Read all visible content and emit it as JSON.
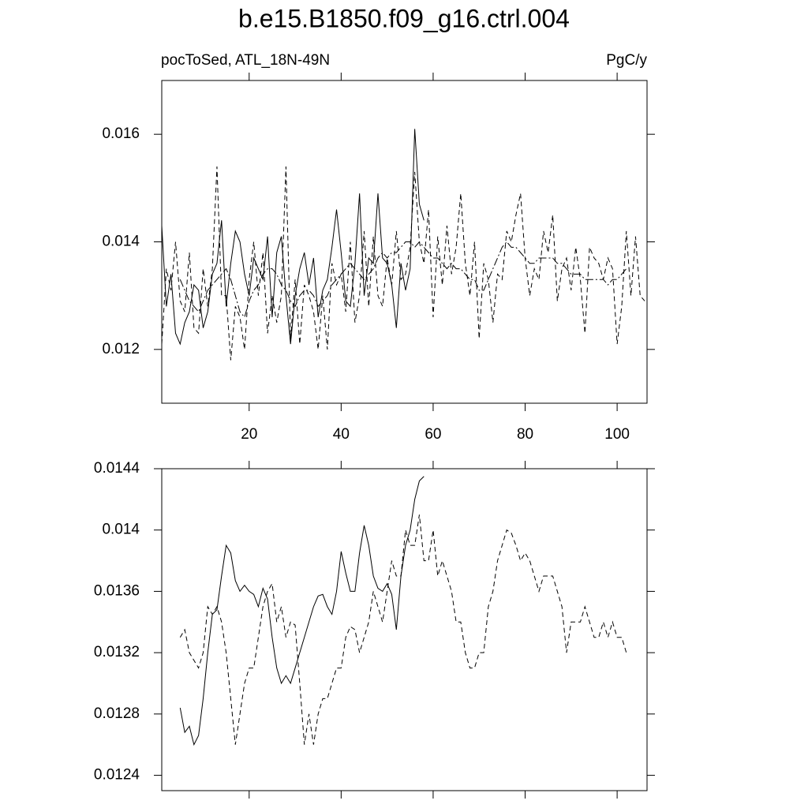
{
  "chart_data": [
    {
      "type": "line",
      "title": "b.e15.B1850.f09_g16.ctrl.004",
      "left_string": "pocToSed, ATL_18N-49N",
      "right_string": "PgC/y",
      "x": [
        1,
        2,
        3,
        4,
        5,
        6,
        7,
        8,
        9,
        10,
        11,
        12,
        13,
        14,
        15,
        16,
        17,
        18,
        19,
        20,
        21,
        22,
        23,
        24,
        25,
        26,
        27,
        28,
        29,
        30,
        31,
        32,
        33,
        34,
        35,
        36,
        37,
        38,
        39,
        40,
        41,
        42,
        43,
        44,
        45,
        46,
        47,
        48,
        49,
        50,
        51,
        52,
        53,
        54,
        55,
        56,
        57,
        58,
        59,
        60,
        61,
        62,
        63,
        64,
        65,
        66,
        67,
        68,
        69,
        70,
        71,
        72,
        73,
        74,
        75,
        76,
        77,
        78,
        79,
        80,
        81,
        82,
        83,
        84,
        85,
        86,
        87,
        88,
        89,
        90,
        91,
        92,
        93,
        94,
        95,
        96,
        97,
        98,
        99,
        100,
        101,
        102,
        103,
        104,
        105,
        106
      ],
      "xlim": [
        1,
        106.5
      ],
      "xticks": [
        20,
        40,
        60,
        80,
        100
      ],
      "xticklabels": true,
      "ylim": [
        0.011,
        0.017
      ],
      "yticks": [
        0.012,
        0.014,
        0.016
      ],
      "series": [
        {
          "color": "#000000",
          "dash": "solid",
          "values": [
            0.0143,
            0.0128,
            0.0134,
            0.0123,
            0.0121,
            0.0125,
            0.0127,
            0.0132,
            0.0131,
            0.0124,
            0.0127,
            0.0134,
            0.0136,
            0.0144,
            0.0128,
            0.0136,
            0.0142,
            0.014,
            0.0134,
            0.013,
            0.0137,
            0.0135,
            0.0133,
            0.0141,
            0.0126,
            0.0138,
            0.0141,
            0.013,
            0.0121,
            0.013,
            0.0135,
            0.0138,
            0.0132,
            0.0137,
            0.0126,
            0.0131,
            0.0133,
            0.0139,
            0.0146,
            0.0138,
            0.0129,
            0.0128,
            0.0136,
            0.0149,
            0.013,
            0.0137,
            0.0136,
            0.0149,
            0.0137,
            0.0136,
            0.0132,
            0.0124,
            0.0136,
            0.0131,
            0.0135,
            0.0161,
            0.0147,
            0.0144,
            null,
            null,
            null,
            null,
            null,
            null,
            null,
            null,
            null,
            null,
            null,
            null,
            null,
            null,
            null,
            null,
            null,
            null,
            null,
            null,
            null,
            null,
            null,
            null,
            null,
            null,
            null,
            null,
            null,
            null,
            null,
            null,
            null,
            null,
            null,
            null,
            null,
            null,
            null,
            null,
            null,
            null,
            null,
            null,
            null,
            null,
            null,
            null
          ]
        },
        {
          "color": "#000000",
          "dash": "dashed",
          "values": [
            0.0121,
            0.0135,
            0.0131,
            0.014,
            0.0129,
            0.0127,
            0.0138,
            0.0124,
            0.0123,
            0.0135,
            0.0128,
            0.0135,
            0.0154,
            0.013,
            0.013,
            0.0118,
            0.0128,
            0.0126,
            0.012,
            0.0133,
            0.014,
            0.013,
            0.0138,
            0.0123,
            0.013,
            0.0125,
            0.013,
            0.0154,
            0.0122,
            0.0133,
            0.0121,
            0.0132,
            0.013,
            0.0127,
            0.012,
            0.013,
            0.012,
            0.0136,
            0.0132,
            0.0134,
            0.0127,
            0.014,
            0.0125,
            0.013,
            0.0142,
            0.0128,
            0.0141,
            0.013,
            0.0128,
            0.0137,
            0.0132,
            0.0142,
            0.0133,
            0.0134,
            0.0139,
            0.0153,
            0.014,
            0.0136,
            0.0146,
            0.0126,
            0.0141,
            0.0132,
            0.0143,
            0.0134,
            0.0139,
            0.0149,
            0.0136,
            0.013,
            0.014,
            0.0122,
            0.0136,
            0.0133,
            0.0125,
            0.0134,
            0.0133,
            0.0142,
            0.014,
            0.0145,
            0.0149,
            0.0137,
            0.013,
            0.0135,
            0.0133,
            0.0142,
            0.0138,
            0.0145,
            0.0129,
            0.0135,
            0.0137,
            0.0131,
            0.0139,
            0.0133,
            0.0123,
            0.0139,
            0.0137,
            0.0136,
            0.0133,
            0.0137,
            0.0135,
            0.0121,
            0.0128,
            0.0142,
            0.013,
            0.0141,
            0.013,
            0.0129
          ]
        },
        {
          "color": "#000000",
          "dash": "dashdot",
          "values": [
            null,
            null,
            null,
            null,
            0.0133,
            0.0131,
            0.0129,
            0.0128,
            0.0127,
            0.0129,
            0.0131,
            0.0132,
            0.0133,
            0.0134,
            0.0135,
            0.0133,
            0.013,
            0.0127,
            0.0126,
            0.0129,
            0.0131,
            0.0132,
            0.0134,
            0.0135,
            0.0135,
            0.0134,
            0.0132,
            0.0131,
            0.0129,
            0.0128,
            0.013,
            0.0131,
            0.0131,
            0.013,
            0.0128,
            0.0129,
            0.013,
            0.0132,
            0.0133,
            0.0134,
            0.0135,
            0.0136,
            0.0135,
            0.0134,
            0.0133,
            0.0134,
            0.0135,
            0.0137,
            0.0138,
            0.0137,
            0.0138,
            0.0138,
            0.0139,
            0.014,
            0.014,
            0.0139,
            0.014,
            0.0139,
            0.0138,
            0.0137,
            0.0137,
            0.0136,
            0.0135,
            0.0136,
            0.0135,
            0.0135,
            0.0134,
            0.0133,
            0.0133,
            0.0131,
            0.0131,
            0.0133,
            0.0135,
            0.0137,
            0.0139,
            0.014,
            0.0139,
            0.0139,
            0.0138,
            0.0137,
            0.0136,
            0.0136,
            0.0137,
            0.0137,
            0.0137,
            0.0137,
            0.0136,
            0.0136,
            0.0135,
            0.0134,
            0.0134,
            0.0134,
            0.0133,
            0.0133,
            0.0133,
            0.0133,
            0.0133,
            0.0132,
            0.0133,
            0.0133,
            0.0134,
            0.0135,
            null,
            null,
            null,
            null
          ]
        }
      ]
    },
    {
      "type": "line",
      "x": [
        1,
        2,
        3,
        4,
        5,
        6,
        7,
        8,
        9,
        10,
        11,
        12,
        13,
        14,
        15,
        16,
        17,
        18,
        19,
        20,
        21,
        22,
        23,
        24,
        25,
        26,
        27,
        28,
        29,
        30,
        31,
        32,
        33,
        34,
        35,
        36,
        37,
        38,
        39,
        40,
        41,
        42,
        43,
        44,
        45,
        46,
        47,
        48,
        49,
        50,
        51,
        52,
        53,
        54,
        55,
        56,
        57,
        58,
        59,
        60,
        61,
        62,
        63,
        64,
        65,
        66,
        67,
        68,
        69,
        70,
        71,
        72,
        73,
        74,
        75,
        76,
        77,
        78,
        79,
        80,
        81,
        82,
        83,
        84,
        85,
        86,
        87,
        88,
        89,
        90,
        91,
        92,
        93,
        94,
        95,
        96,
        97,
        98,
        99,
        100,
        101,
        102,
        103,
        104,
        105,
        106
      ],
      "xlim": [
        1,
        106.5
      ],
      "xticks": [
        20,
        40,
        60,
        80,
        100
      ],
      "xticklabels": false,
      "ylim": [
        0.0123,
        0.0144
      ],
      "yticks": [
        0.0124,
        0.0128,
        0.0132,
        0.0136,
        0.014,
        0.0144
      ],
      "series": [
        {
          "color": "#000000",
          "dash": "solid",
          "values": [
            null,
            null,
            null,
            null,
            0.01284,
            0.01268,
            0.01272,
            0.0126,
            0.01266,
            0.0129,
            0.0132,
            0.01345,
            0.01348,
            0.0137,
            0.0139,
            0.01385,
            0.01367,
            0.0136,
            0.01364,
            0.0136,
            0.01358,
            0.0135,
            0.01362,
            0.01355,
            0.0133,
            0.0131,
            0.013,
            0.01305,
            0.013,
            0.0131,
            0.0132,
            0.0133,
            0.0134,
            0.0135,
            0.01357,
            0.01358,
            0.0135,
            0.01345,
            0.0136,
            0.01386,
            0.01372,
            0.0136,
            0.0136,
            0.01385,
            0.01403,
            0.0139,
            0.0137,
            0.01362,
            0.0136,
            0.01365,
            0.01358,
            0.01335,
            0.0137,
            0.0139,
            0.014,
            0.0142,
            0.01432,
            0.01435,
            null,
            null,
            null,
            null,
            null,
            null,
            null,
            null,
            null,
            null,
            null,
            null,
            null,
            null,
            null,
            null,
            null,
            null,
            null,
            null,
            null,
            null,
            null,
            null,
            null,
            null,
            null,
            null,
            null,
            null,
            null,
            null,
            null,
            null,
            null,
            null,
            null,
            null,
            null,
            null,
            null,
            null,
            null,
            null,
            null,
            null,
            null,
            null
          ]
        },
        {
          "color": "#000000",
          "dash": "dashed",
          "values": [
            null,
            null,
            null,
            null,
            0.0133,
            0.01335,
            0.0132,
            0.01315,
            0.0131,
            0.0132,
            0.0135,
            0.01345,
            0.0135,
            0.0134,
            0.0132,
            0.0129,
            0.0126,
            0.0128,
            0.013,
            0.0131,
            0.0131,
            0.0133,
            0.0135,
            0.0136,
            0.01365,
            0.0134,
            0.0135,
            0.0133,
            0.0134,
            0.01338,
            0.013,
            0.0126,
            0.0128,
            0.0126,
            0.0128,
            0.0129,
            0.0129,
            0.013,
            0.0131,
            0.0131,
            0.0133,
            0.01337,
            0.01335,
            0.0132,
            0.0133,
            0.0134,
            0.0136,
            0.0135,
            0.0134,
            0.0136,
            0.0138,
            0.0137,
            0.0137,
            0.014,
            0.0139,
            0.0139,
            0.0141,
            0.0138,
            0.0138,
            0.014,
            0.0137,
            0.0138,
            0.0137,
            0.0136,
            0.0134,
            0.0134,
            0.0132,
            0.0131,
            0.0131,
            0.0132,
            0.0132,
            0.0135,
            0.0136,
            0.0138,
            0.0139,
            0.014,
            0.01398,
            0.0139,
            0.0138,
            0.01385,
            0.0138,
            0.0137,
            0.0136,
            0.0137,
            0.0137,
            0.0137,
            0.0136,
            0.0135,
            0.0132,
            0.0134,
            0.0134,
            0.0134,
            0.0135,
            0.0134,
            0.0133,
            0.0133,
            0.0134,
            0.0133,
            0.0134,
            0.0133,
            0.0133,
            0.0132,
            null,
            null,
            null,
            null
          ]
        }
      ]
    }
  ]
}
